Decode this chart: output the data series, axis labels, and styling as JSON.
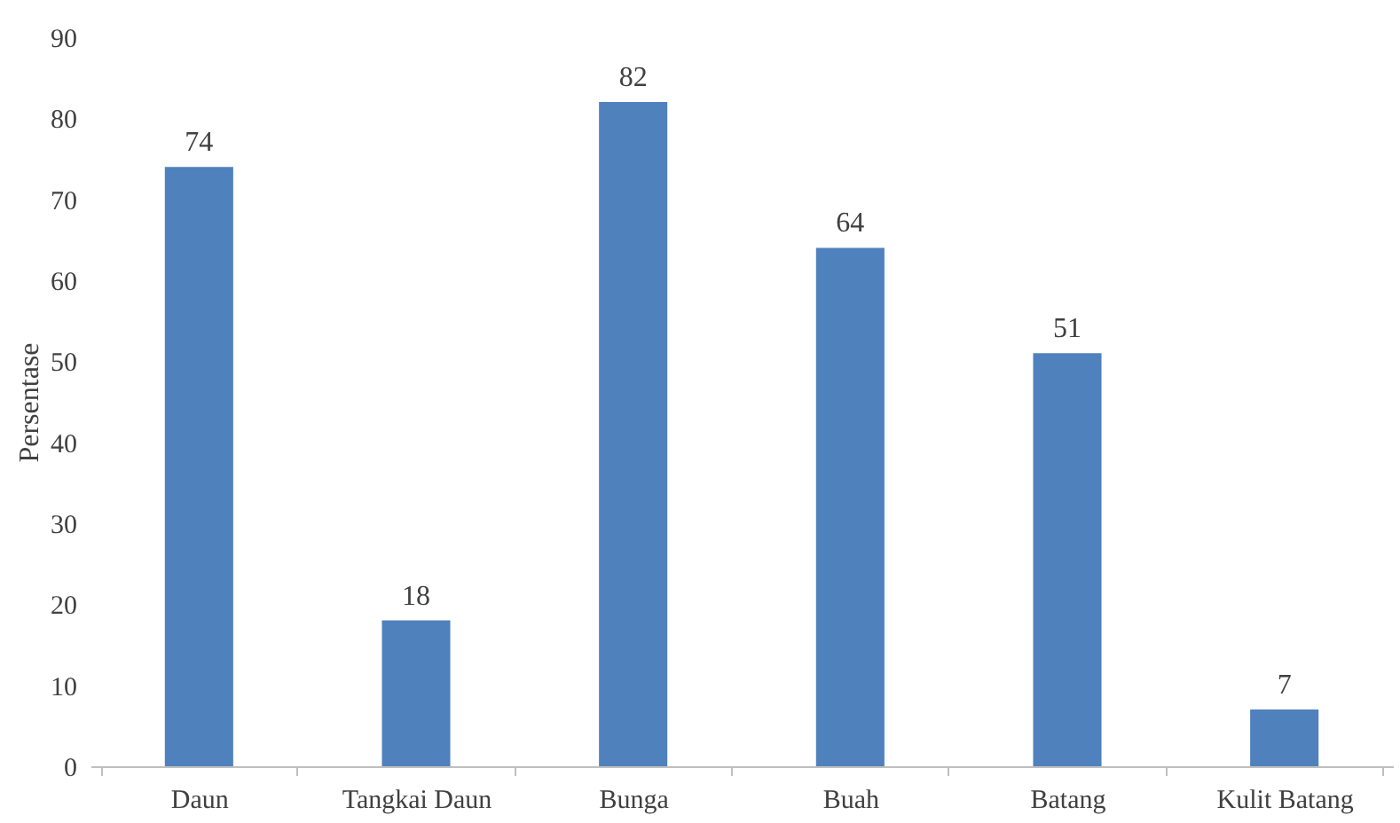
{
  "chart_data": {
    "type": "bar",
    "ylabel": "Persentase",
    "categories": [
      "Daun",
      "Tangkai Daun",
      "Bunga",
      "Buah",
      "Batang",
      "Kulit Batang"
    ],
    "values": [
      74,
      18,
      82,
      64,
      51,
      7
    ],
    "color": "#4f81bd",
    "ylim": [
      0,
      90
    ],
    "yticks": [
      0,
      10,
      20,
      30,
      40,
      50,
      60,
      70,
      80,
      90
    ],
    "grid": false,
    "data_labels": true
  }
}
